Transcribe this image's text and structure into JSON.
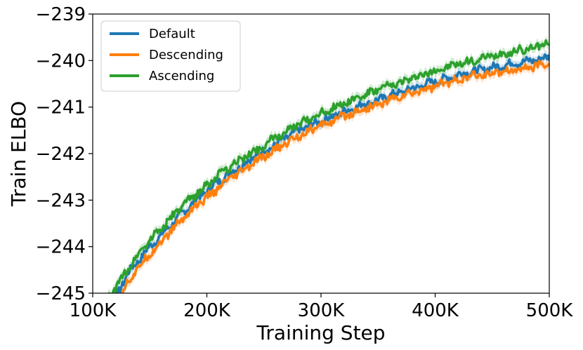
{
  "chart_data": {
    "type": "line",
    "xlabel": "Training Step",
    "ylabel": "Train ELBO",
    "xlim": [
      100000,
      500000
    ],
    "ylim": [
      -245,
      -239
    ],
    "xticks": [
      100000,
      200000,
      300000,
      400000,
      500000
    ],
    "xtick_labels": [
      "100K",
      "200K",
      "300K",
      "400K",
      "500K"
    ],
    "yticks": [
      -245,
      -244,
      -243,
      -242,
      -241,
      -240,
      -239
    ],
    "ytick_labels": [
      "−245",
      "−244",
      "−243",
      "−242",
      "−241",
      "−240",
      "−239"
    ],
    "grid": false,
    "legend_position": "upper-left",
    "x": [
      100000,
      110000,
      120000,
      130000,
      140000,
      150000,
      160000,
      170000,
      180000,
      190000,
      200000,
      210000,
      220000,
      230000,
      240000,
      250000,
      260000,
      270000,
      280000,
      290000,
      300000,
      310000,
      320000,
      330000,
      340000,
      350000,
      360000,
      370000,
      380000,
      390000,
      400000,
      410000,
      420000,
      430000,
      440000,
      450000,
      460000,
      470000,
      480000,
      490000,
      500000
    ],
    "series": [
      {
        "name": "Default",
        "color": "#1f77b4",
        "values": [
          -245.5,
          -245.4,
          -245.1,
          -244.6,
          -244.3,
          -244.0,
          -243.75,
          -243.5,
          -243.25,
          -243.0,
          -242.8,
          -242.6,
          -242.42,
          -242.25,
          -242.1,
          -241.95,
          -241.8,
          -241.65,
          -241.5,
          -241.4,
          -241.3,
          -241.2,
          -241.1,
          -241.0,
          -240.92,
          -240.85,
          -240.75,
          -240.68,
          -240.6,
          -240.52,
          -240.45,
          -240.38,
          -240.3,
          -240.25,
          -240.2,
          -240.15,
          -240.1,
          -240.05,
          -240.02,
          -239.98,
          -239.92
        ]
      },
      {
        "name": "Descending",
        "color": "#ff7f0e",
        "values": [
          -245.6,
          -245.5,
          -245.2,
          -244.8,
          -244.45,
          -244.15,
          -243.9,
          -243.62,
          -243.37,
          -243.13,
          -242.95,
          -242.75,
          -242.55,
          -242.4,
          -242.22,
          -242.07,
          -241.92,
          -241.77,
          -241.62,
          -241.5,
          -241.4,
          -241.3,
          -241.2,
          -241.1,
          -241.02,
          -240.95,
          -240.85,
          -240.77,
          -240.7,
          -240.62,
          -240.55,
          -240.48,
          -240.42,
          -240.35,
          -240.32,
          -240.27,
          -240.22,
          -240.2,
          -240.15,
          -240.12,
          -240.05
        ]
      },
      {
        "name": "Ascending",
        "color": "#2ca02c",
        "values": [
          -245.4,
          -245.2,
          -244.9,
          -244.5,
          -244.15,
          -243.85,
          -243.6,
          -243.35,
          -243.1,
          -242.88,
          -242.68,
          -242.47,
          -242.3,
          -242.12,
          -241.97,
          -241.82,
          -241.66,
          -241.52,
          -241.38,
          -241.25,
          -241.13,
          -241.02,
          -240.92,
          -240.82,
          -240.73,
          -240.63,
          -240.55,
          -240.47,
          -240.38,
          -240.3,
          -240.22,
          -240.15,
          -240.08,
          -240.02,
          -239.97,
          -239.9,
          -239.85,
          -239.8,
          -239.75,
          -239.7,
          -239.6
        ]
      }
    ]
  }
}
